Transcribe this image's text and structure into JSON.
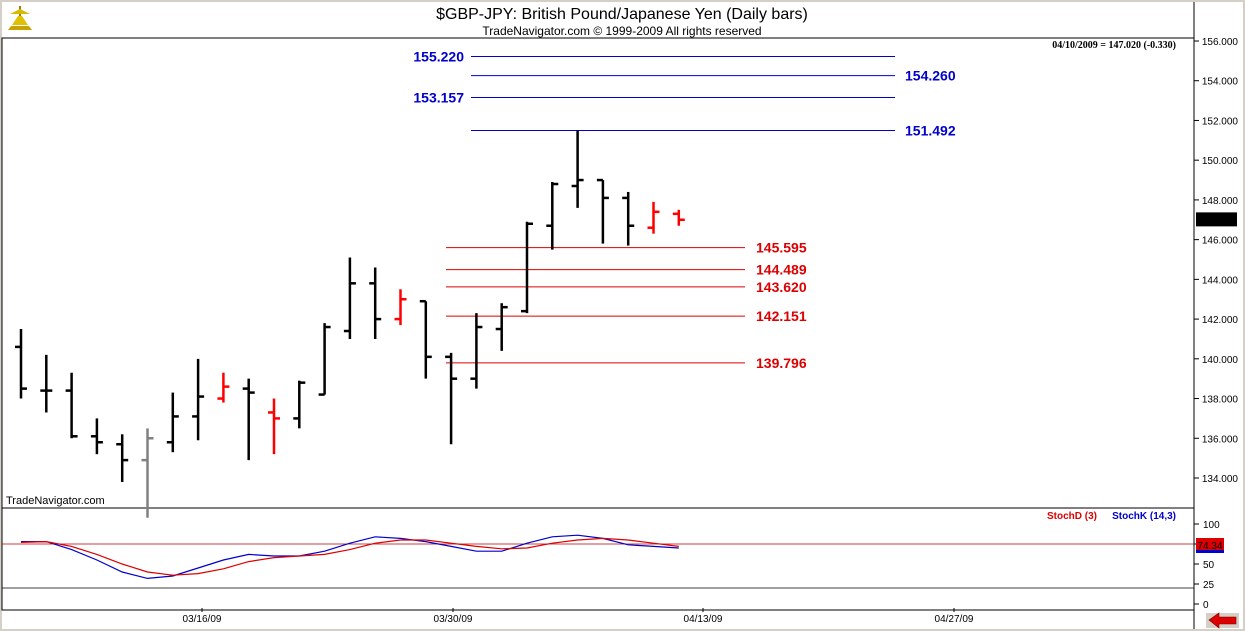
{
  "header": {
    "title": "$GBP-JPY:  British Pound/Japanese Yen  (Daily bars)",
    "copyright": "TradeNavigator.com © 1999-2009 All rights reserved",
    "last_info": "04/10/2009 = 147.020 (-0.330)",
    "watermark": "TradeNavigator.com"
  },
  "price_axis": {
    "ticks": [
      "156.000",
      "154.000",
      "152.000",
      "150.000",
      "148.000",
      "146.000",
      "144.000",
      "142.000",
      "140.000",
      "138.000",
      "136.000",
      "134.000"
    ],
    "current_label": "147.020",
    "current_value": 147.02
  },
  "stoch_axis": {
    "ticks": [
      "100",
      "75",
      "50",
      "25",
      "0"
    ],
    "current_label": "74.34",
    "current_value": 74.34
  },
  "date_axis": {
    "labels": [
      "03/16/09",
      "03/30/09",
      "04/13/09",
      "04/27/09"
    ]
  },
  "legend": {
    "stochd": "StochD (3)",
    "stochk": "StochK (14,3)"
  },
  "colors": {
    "up_bar": "#000000",
    "down_bar": "#ff0000",
    "gray_bar": "#808080",
    "fib_blue": "#0000cc",
    "fib_red": "#dd0000",
    "stochK": "#0000cc",
    "stochD": "#dd0000"
  },
  "chart_data": [
    {
      "type": "ohlc",
      "ylim": [
        132,
        156
      ],
      "bars": [
        {
          "o": 140.6,
          "h": 141.5,
          "l": 138.0,
          "c": 138.5,
          "color": "black"
        },
        {
          "o": 138.4,
          "h": 140.2,
          "l": 137.3,
          "c": 138.4,
          "color": "black"
        },
        {
          "o": 138.4,
          "h": 139.3,
          "l": 136.0,
          "c": 136.1,
          "color": "black"
        },
        {
          "o": 136.1,
          "h": 137.0,
          "l": 135.2,
          "c": 135.8,
          "color": "black"
        },
        {
          "o": 135.7,
          "h": 136.2,
          "l": 133.8,
          "c": 134.9,
          "color": "black"
        },
        {
          "o": 134.9,
          "h": 136.5,
          "l": 132.0,
          "c": 136.0,
          "color": "gray"
        },
        {
          "o": 135.8,
          "h": 138.3,
          "l": 135.3,
          "c": 137.1,
          "color": "black"
        },
        {
          "o": 137.1,
          "h": 140.0,
          "l": 135.9,
          "c": 138.1,
          "color": "black"
        },
        {
          "o": 138.0,
          "h": 139.3,
          "l": 137.8,
          "c": 138.6,
          "color": "red"
        },
        {
          "o": 138.5,
          "h": 139.0,
          "l": 134.9,
          "c": 138.3,
          "color": "black"
        },
        {
          "o": 137.3,
          "h": 138.0,
          "l": 135.2,
          "c": 137.0,
          "color": "red"
        },
        {
          "o": 137.0,
          "h": 138.9,
          "l": 136.5,
          "c": 138.8,
          "color": "black"
        },
        {
          "o": 138.2,
          "h": 141.8,
          "l": 138.2,
          "c": 141.6,
          "color": "black"
        },
        {
          "o": 141.4,
          "h": 145.1,
          "l": 141.0,
          "c": 143.8,
          "color": "black"
        },
        {
          "o": 143.8,
          "h": 144.6,
          "l": 141.0,
          "c": 142.0,
          "color": "black"
        },
        {
          "o": 142.0,
          "h": 143.5,
          "l": 141.7,
          "c": 143.0,
          "color": "red"
        },
        {
          "o": 142.9,
          "h": 142.9,
          "l": 139.0,
          "c": 140.1,
          "color": "black"
        },
        {
          "o": 140.1,
          "h": 140.3,
          "l": 135.7,
          "c": 139.0,
          "color": "black"
        },
        {
          "o": 139.0,
          "h": 142.3,
          "l": 138.5,
          "c": 141.6,
          "color": "black"
        },
        {
          "o": 141.5,
          "h": 142.8,
          "l": 140.4,
          "c": 142.6,
          "color": "black"
        },
        {
          "o": 142.4,
          "h": 146.9,
          "l": 142.3,
          "c": 146.8,
          "color": "black"
        },
        {
          "o": 146.7,
          "h": 148.9,
          "l": 145.5,
          "c": 148.8,
          "color": "black"
        },
        {
          "o": 148.7,
          "h": 151.5,
          "l": 147.6,
          "c": 149.0,
          "color": "black"
        },
        {
          "o": 149.0,
          "h": 149.0,
          "l": 145.8,
          "c": 148.1,
          "color": "black"
        },
        {
          "o": 148.1,
          "h": 148.4,
          "l": 145.7,
          "c": 146.7,
          "color": "black"
        },
        {
          "o": 146.6,
          "h": 147.9,
          "l": 146.3,
          "c": 147.4,
          "color": "red"
        },
        {
          "o": 147.3,
          "h": 147.5,
          "l": 146.7,
          "c": 147.0,
          "color": "red"
        }
      ]
    },
    {
      "type": "horizontal-levels",
      "levels": [
        {
          "value": 155.22,
          "label": "155.220",
          "color": "blue",
          "label_side": "left"
        },
        {
          "value": 154.26,
          "label": "154.260",
          "color": "blue",
          "label_side": "right"
        },
        {
          "value": 153.157,
          "label": "153.157",
          "color": "blue",
          "label_side": "left"
        },
        {
          "value": 151.492,
          "label": "151.492",
          "color": "blue",
          "label_side": "right"
        },
        {
          "value": 145.595,
          "label": "145.595",
          "color": "red",
          "label_side": "right"
        },
        {
          "value": 144.489,
          "label": "144.489",
          "color": "red",
          "label_side": "right"
        },
        {
          "value": 143.62,
          "label": "143.620",
          "color": "red",
          "label_side": "right"
        },
        {
          "value": 142.151,
          "label": "142.151",
          "color": "red",
          "label_side": "right"
        },
        {
          "value": 139.796,
          "label": "139.796",
          "color": "red",
          "label_side": "right"
        }
      ]
    },
    {
      "type": "line",
      "ylim": [
        0,
        100
      ],
      "reference_lines": [
        75,
        20
      ],
      "series": [
        {
          "name": "StochK (14,3)",
          "color": "blue",
          "values": [
            78,
            78,
            68,
            55,
            40,
            32,
            35,
            45,
            55,
            62,
            60,
            60,
            66,
            76,
            84,
            82,
            78,
            72,
            66,
            66,
            76,
            84,
            86,
            82,
            74,
            72,
            70
          ]
        },
        {
          "name": "StochD (3)",
          "color": "red",
          "values": [
            77,
            78,
            72,
            62,
            50,
            40,
            36,
            38,
            44,
            53,
            58,
            60,
            62,
            68,
            76,
            80,
            80,
            76,
            72,
            69,
            70,
            76,
            80,
            82,
            80,
            76,
            72
          ]
        }
      ]
    }
  ]
}
